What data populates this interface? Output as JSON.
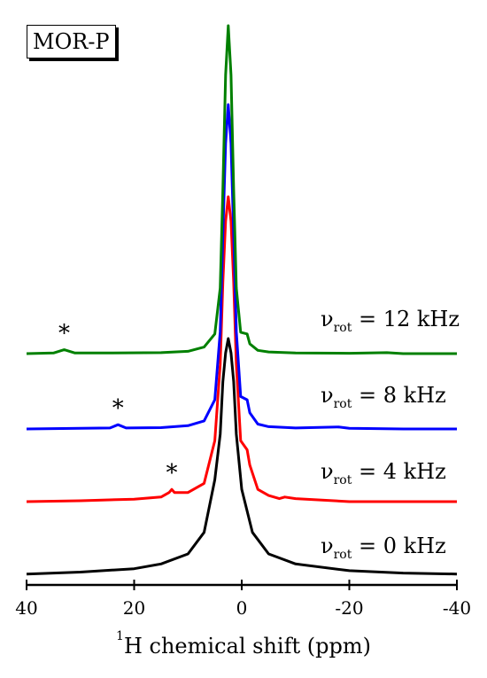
{
  "panel_label": "MOR-P",
  "chart_data": {
    "type": "line",
    "title": "",
    "xlabel_superscript": "1",
    "xlabel": "H chemical shift (ppm)",
    "xlim": [
      40,
      -40
    ],
    "x_ticks": [
      40,
      20,
      0,
      -20,
      -40
    ],
    "grid": false,
    "legend": "none",
    "peak_position_ppm": 2.5,
    "series": [
      {
        "name": "νrot = 0 kHz",
        "label_prefix": "ν",
        "label_sub": "rot",
        "label_value": "= 0 kHz",
        "color": "#000000",
        "x": [
          40,
          30,
          20,
          15,
          10,
          7,
          5,
          4,
          3.5,
          3,
          2.5,
          2,
          1.5,
          1,
          0,
          -2,
          -5,
          -10,
          -20,
          -30,
          -40
        ],
        "y": [
          0.016,
          0.024,
          0.038,
          0.058,
          0.1,
          0.19,
          0.41,
          0.6,
          0.82,
          0.94,
          1.0,
          0.94,
          0.82,
          0.6,
          0.37,
          0.19,
          0.1,
          0.058,
          0.03,
          0.02,
          0.016
        ]
      },
      {
        "name": "νrot = 4 kHz",
        "label_prefix": "ν",
        "label_sub": "rot",
        "label_value": "= 4 kHz",
        "color": "#ff0000",
        "spinning_sideband_ppm": 13,
        "x": [
          40,
          30,
          20,
          15,
          13.5,
          13,
          12.5,
          10,
          7,
          5,
          4,
          3.5,
          3,
          2.5,
          2,
          1.5,
          1,
          0.2,
          -1,
          -1.5,
          -3,
          -5,
          -7,
          -8,
          -10,
          -20,
          -30,
          -40
        ],
        "y": [
          0.0,
          0.003,
          0.008,
          0.015,
          0.03,
          0.04,
          0.03,
          0.03,
          0.06,
          0.2,
          0.45,
          0.72,
          0.92,
          1.0,
          0.92,
          0.72,
          0.45,
          0.2,
          0.17,
          0.12,
          0.04,
          0.02,
          0.01,
          0.015,
          0.01,
          0.0,
          0.0,
          0.0
        ]
      },
      {
        "name": "νrot = 8 kHz",
        "label_prefix": "ν",
        "label_sub": "rot",
        "label_value": "= 8 kHz",
        "color": "#0000ff",
        "spinning_sideband_ppm": 23,
        "x": [
          40,
          30,
          24.5,
          23,
          21.5,
          15,
          10,
          7,
          5,
          4,
          3.5,
          3,
          2.5,
          2,
          1.5,
          1,
          0.2,
          -1,
          -1.5,
          -3,
          -5,
          -10,
          -18,
          -20,
          -30,
          -40
        ],
        "y": [
          0.0,
          0.002,
          0.003,
          0.013,
          0.003,
          0.004,
          0.01,
          0.025,
          0.09,
          0.3,
          0.6,
          0.88,
          1.0,
          0.88,
          0.6,
          0.3,
          0.1,
          0.09,
          0.05,
          0.015,
          0.007,
          0.003,
          0.006,
          0.002,
          0.0,
          0.0
        ]
      },
      {
        "name": "νrot = 12 kHz",
        "label_prefix": "ν",
        "label_sub": "rot",
        "label_value": "= 12 kHz",
        "color": "#008000",
        "spinning_sideband_ppm": 33,
        "x": [
          40,
          35,
          33,
          31,
          25,
          15,
          10,
          7,
          5,
          4,
          3.5,
          3,
          2.5,
          2,
          1.5,
          1,
          0.2,
          -1,
          -1.5,
          -3,
          -5,
          -10,
          -20,
          -27,
          -30,
          -40
        ],
        "y": [
          0.0,
          0.002,
          0.012,
          0.002,
          0.002,
          0.003,
          0.007,
          0.02,
          0.06,
          0.2,
          0.5,
          0.85,
          1.0,
          0.85,
          0.5,
          0.2,
          0.065,
          0.06,
          0.03,
          0.01,
          0.005,
          0.002,
          0.001,
          0.003,
          0.0,
          0.0
        ]
      }
    ],
    "annotations": [
      {
        "text": "*",
        "series": 1,
        "x": 13
      },
      {
        "text": "*",
        "series": 2,
        "x": 23
      },
      {
        "text": "*",
        "series": 3,
        "x": 33
      }
    ]
  }
}
